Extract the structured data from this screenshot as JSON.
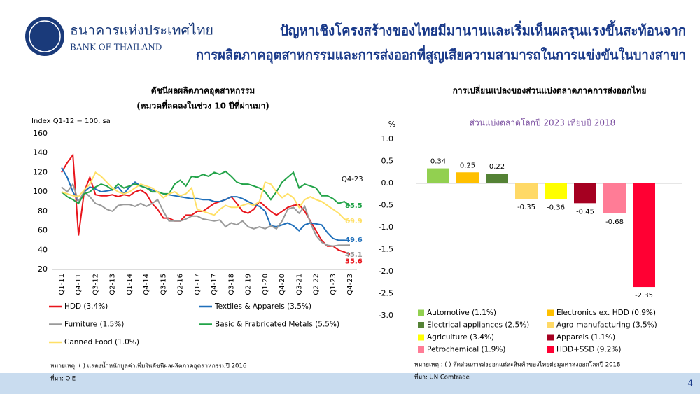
{
  "header": {
    "bank_name_th": "ธนาคารแห่งประเทศไทย",
    "bank_name_en": "BANK OF THAILAND",
    "title": [
      "ปัญหาเชิงโครงสร้างของไทยมีมานานและเริ่มเห็นผลรุนแรงขึ้นสะท้อนจาก",
      "การผลิตภาคอุตสาหกรรมและการส่งออกที่สูญเสียความสามารถในการแข่งขันในบางสาขา"
    ]
  },
  "chart_data": [
    {
      "type": "line",
      "title": "ดัชนีผลผลิตภาคอุตสาหกรรม",
      "subtitle": "(หมวดที่ลดลงในช่วง 10 ปีที่ผ่านมา)",
      "ylabel": "Index Q1-12 = 100, sa",
      "annotation": "Q4-23",
      "categories": [
        "Q1-11",
        null,
        null,
        "Q4-11",
        null,
        null,
        "Q3-12",
        null,
        null,
        "Q2-13",
        null,
        null,
        "Q1-14",
        null,
        null,
        "Q4-14",
        null,
        null,
        "Q3-15",
        null,
        null,
        "Q2-16",
        null,
        null,
        "Q1-17",
        null,
        null,
        "Q4-17",
        null,
        null,
        "Q3-18",
        null,
        null,
        "Q2-19",
        null,
        null,
        "Q1-20",
        null,
        null,
        "Q4-20",
        null,
        null,
        "Q3-21",
        null,
        null,
        "Q2-22",
        null,
        null,
        "Q1-23",
        null,
        null,
        "Q4-23"
      ],
      "ylim": [
        20,
        160
      ],
      "yticks": [
        20,
        40,
        60,
        80,
        100,
        120,
        140,
        160
      ],
      "grid": false,
      "series": [
        {
          "name": "HDD (3.4%)",
          "color": "#e8141b",
          "values": [
            120,
            130,
            138,
            55,
            100,
            115,
            97,
            96,
            96,
            97,
            95,
            97,
            96,
            100,
            102,
            98,
            88,
            82,
            73,
            73,
            70,
            70,
            76,
            76,
            80,
            80,
            84,
            88,
            90,
            92,
            95,
            88,
            80,
            78,
            82,
            90,
            85,
            80,
            76,
            80,
            84,
            86,
            87,
            80,
            70,
            60,
            50,
            44,
            44,
            40,
            38,
            35.6
          ]
        },
        {
          "name": "Textiles & Apparels (3.5%)",
          "color": "#1f6fba",
          "values": [
            125,
            115,
            100,
            90,
            100,
            105,
            103,
            100,
            101,
            102,
            105,
            98,
            105,
            110,
            106,
            104,
            102,
            100,
            98,
            97,
            96,
            95,
            94,
            93,
            93,
            92,
            92,
            90,
            90,
            92,
            95,
            95,
            93,
            90,
            87,
            85,
            80,
            65,
            64,
            66,
            68,
            65,
            60,
            66,
            68,
            67,
            66,
            58,
            52,
            50,
            50,
            49.6
          ]
        },
        {
          "name": "Furniture (1.5%)",
          "color": "#9a9a9a",
          "values": [
            105,
            100,
            108,
            90,
            100,
            95,
            88,
            86,
            82,
            80,
            86,
            87,
            87,
            85,
            88,
            85,
            88,
            92,
            80,
            70,
            70,
            70,
            72,
            75,
            75,
            72,
            71,
            70,
            71,
            64,
            68,
            66,
            70,
            64,
            62,
            64,
            62,
            65,
            62,
            70,
            82,
            84,
            78,
            85,
            68,
            55,
            48,
            45,
            44,
            45,
            45,
            45.1
          ]
        },
        {
          "name": "Basic & Frabricated Metals (5.5%)",
          "color": "#22a348",
          "values": [
            100,
            95,
            92,
            88,
            98,
            100,
            105,
            108,
            106,
            102,
            108,
            104,
            106,
            108,
            106,
            104,
            100,
            100,
            98,
            98,
            108,
            112,
            106,
            116,
            115,
            118,
            116,
            120,
            118,
            121,
            116,
            110,
            108,
            108,
            106,
            104,
            100,
            92,
            100,
            110,
            115,
            120,
            104,
            108,
            106,
            104,
            96,
            96,
            93,
            88,
            90,
            85.5
          ]
        },
        {
          "name": "Canned Food (1.0%)",
          "color": "#ffe066",
          "values": [
            100,
            98,
            96,
            95,
            102,
            108,
            120,
            116,
            110,
            104,
            100,
            98,
            100,
            104,
            108,
            106,
            104,
            100,
            94,
            98,
            100,
            96,
            98,
            104,
            82,
            80,
            78,
            76,
            82,
            86,
            84,
            84,
            86,
            88,
            86,
            90,
            110,
            108,
            100,
            94,
            98,
            94,
            84,
            92,
            95,
            92,
            90,
            86,
            82,
            78,
            72,
            69.9
          ]
        }
      ]
    },
    {
      "type": "bar",
      "title": "การเปลี่ยนแปลงของส่วนแบ่งตลาดภาคการส่งออกไทย",
      "subtitle": "ส่วนแบ่งตลาดโลกปี 2023 เทียบปี 2018",
      "ylabel": "%",
      "categories": [
        "Automotive (1.1%)",
        "Electronics ex. HDD (0.9%)",
        "Electrical appliances (2.5%)",
        "Agro-manufacturing (3.5%)",
        "Agriculture (3.4%)",
        "Apparels (1.1%)",
        "Petrochemical (1.9%)",
        "HDD+SSD (9.2%)"
      ],
      "values": [
        0.34,
        0.25,
        0.22,
        -0.35,
        -0.36,
        -0.45,
        -0.68,
        -2.35
      ],
      "colors": [
        "#92d050",
        "#ffc000",
        "#548235",
        "#ffd966",
        "#ffff00",
        "#a50021",
        "#ff7c96",
        "#ff0033"
      ],
      "ylim": [
        -3,
        1
      ],
      "yticks": [
        {
          "value": 1,
          "label": "1.0"
        },
        0.5,
        {
          "value": 0,
          "label": "0.0"
        },
        -0.5,
        {
          "value": -1,
          "label": "-1.0"
        },
        -1.5,
        {
          "value": -2,
          "label": "-2.0"
        },
        -2.5,
        {
          "value": -3,
          "label": "-3.0"
        }
      ],
      "grid": false
    }
  ],
  "footer": {
    "left_note": "หมายเหตุ: ( ) แสดงน้ำหนักมูลค่าเพิ่มในดัชนีผลผลิตภาคอุตสาหกรรมปี 2016",
    "left_source": "ที่มา: OIE",
    "right_note": "หมายเหตุ : ( ) สัดส่วนการส่งออกแต่ละสินค้าของไทยต่อมูลค่าส่งออกโลกปี 2018",
    "right_source": "ที่มา: UN Comtrade",
    "page_number": "4"
  }
}
